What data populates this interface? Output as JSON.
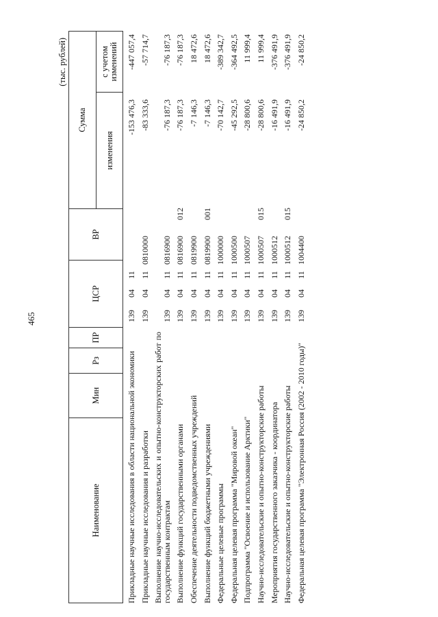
{
  "page_number": "465",
  "units": "(тыс. рублей)",
  "header": {
    "name": "Наименование",
    "min": "Мин",
    "rz": "Рз",
    "pr": "ПР",
    "csr": "ЦСР",
    "vr": "ВР",
    "sum": "Сумма",
    "change": "изменения",
    "with_change": "с учетом изменений"
  },
  "rows": [
    {
      "name": "Прикладные научные исследования в области национальной экономики",
      "min": "139",
      "rz": "04",
      "pr": "11",
      "csr": "",
      "vr": "",
      "change": "-153 476,3",
      "total": "-447 057,4"
    },
    {
      "name": "Прикладные научные исследования и разработки",
      "min": "139",
      "rz": "04",
      "pr": "11",
      "csr": "0810000",
      "vr": "",
      "change": "-83 333,6",
      "total": "-57 714,7"
    },
    {
      "name": "Выполнение научно-исследовательских и опытно-конструкторских работ по государственным контрактам",
      "min": "139",
      "rz": "04",
      "pr": "11",
      "csr": "0816900",
      "vr": "",
      "change": "-76 187,3",
      "total": "-76 187,3"
    },
    {
      "name": "Выполнение функций государственными органами",
      "min": "139",
      "rz": "04",
      "pr": "11",
      "csr": "0816900",
      "vr": "012",
      "change": "-76 187,3",
      "total": "-76 187,3"
    },
    {
      "name": "Обеспечение деятельности подведомственных учреждений",
      "min": "139",
      "rz": "04",
      "pr": "11",
      "csr": "0819900",
      "vr": "",
      "change": "-7 146,3",
      "total": "18 472,6"
    },
    {
      "name": "Выполнение функций бюджетными учреждениями",
      "min": "139",
      "rz": "04",
      "pr": "11",
      "csr": "0819900",
      "vr": "001",
      "change": "-7 146,3",
      "total": "18 472,6"
    },
    {
      "name": "Федеральные целевые программы",
      "min": "139",
      "rz": "04",
      "pr": "11",
      "csr": "1000000",
      "vr": "",
      "change": "-70 142,7",
      "total": "-389 342,7"
    },
    {
      "name": "Федеральная целевая программа \"Мировой океан\"",
      "min": "139",
      "rz": "04",
      "pr": "11",
      "csr": "1000500",
      "vr": "",
      "change": "-45 292,5",
      "total": "-364 492,5"
    },
    {
      "name": "Подпрограмма \"Освоение и использование Арктики\"",
      "min": "139",
      "rz": "04",
      "pr": "11",
      "csr": "1000507",
      "vr": "",
      "change": "-28 800,6",
      "total": "11 999,4"
    },
    {
      "name": "Научно-исследовательские и опытно-конструкторские работы",
      "min": "139",
      "rz": "04",
      "pr": "11",
      "csr": "1000507",
      "vr": "015",
      "change": "-28 800,6",
      "total": "11 999,4"
    },
    {
      "name": "Мероприятия государственного заказчика - координатора",
      "min": "139",
      "rz": "04",
      "pr": "11",
      "csr": "1000512",
      "vr": "",
      "change": "-16 491,9",
      "total": "-376 491,9"
    },
    {
      "name": "Научно-исследовательские и опытно-конструкторские работы",
      "min": "139",
      "rz": "04",
      "pr": "11",
      "csr": "1000512",
      "vr": "015",
      "change": "-16 491,9",
      "total": "-376 491,9"
    },
    {
      "name": "Федеральная целевая программа \"Электронная Россия (2002 - 2010 годы)\"",
      "min": "139",
      "rz": "04",
      "pr": "11",
      "csr": "1004400",
      "vr": "",
      "change": "-24 850,2",
      "total": "-24 850,2"
    }
  ]
}
